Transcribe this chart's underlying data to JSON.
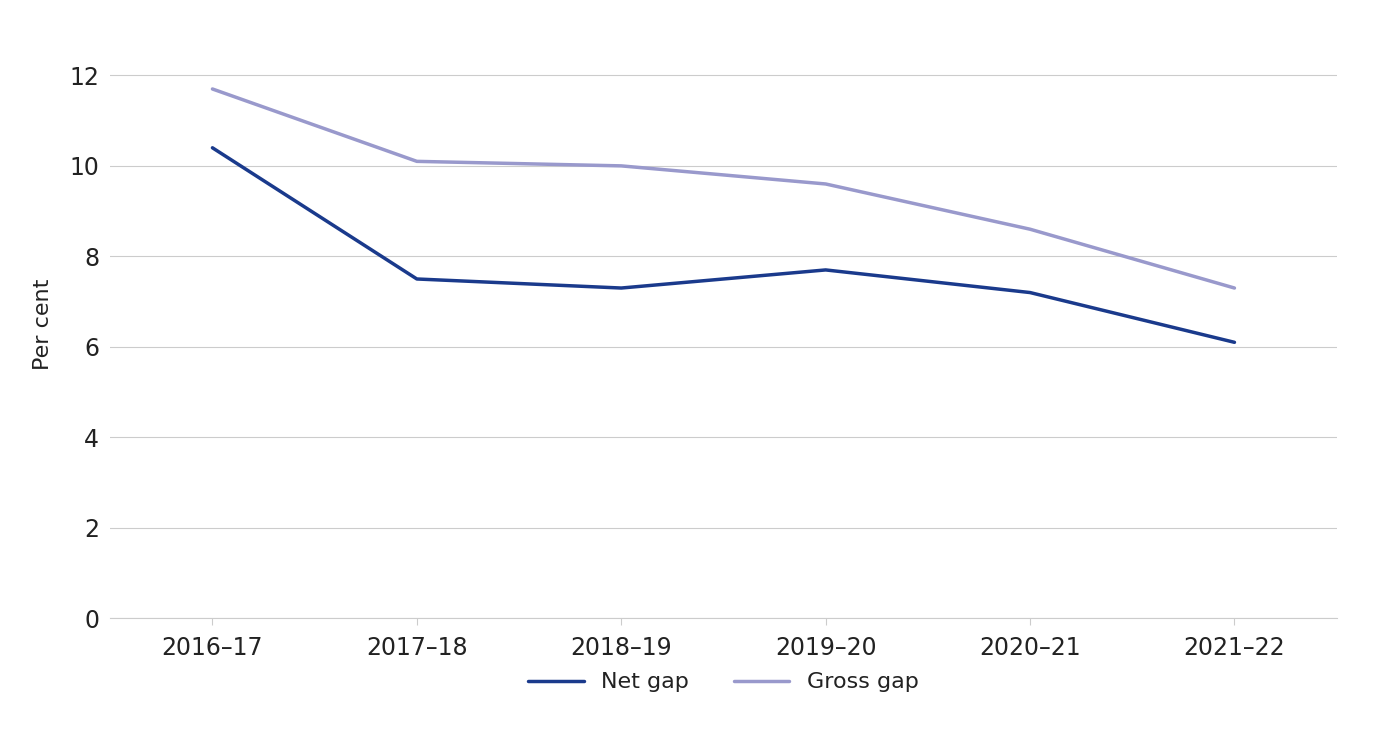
{
  "categories": [
    "2016–17",
    "2017–18",
    "2018–19",
    "2019–20",
    "2020–21",
    "2021–22"
  ],
  "net_gap": [
    10.4,
    7.5,
    7.3,
    7.7,
    7.2,
    6.1
  ],
  "gross_gap": [
    11.7,
    10.1,
    10.0,
    9.6,
    8.6,
    7.3
  ],
  "net_gap_color": "#1a3a8c",
  "gross_gap_color": "#9999cc",
  "net_gap_label": "Net gap",
  "gross_gap_label": "Gross gap",
  "ylabel": "Per cent",
  "ylim": [
    0,
    13
  ],
  "yticks": [
    0,
    2,
    4,
    6,
    8,
    10,
    12
  ],
  "background_color": "#ffffff",
  "grid_color": "#cccccc",
  "line_width": 2.5,
  "legend_fontsize": 16,
  "tick_fontsize": 17,
  "ylabel_fontsize": 16
}
